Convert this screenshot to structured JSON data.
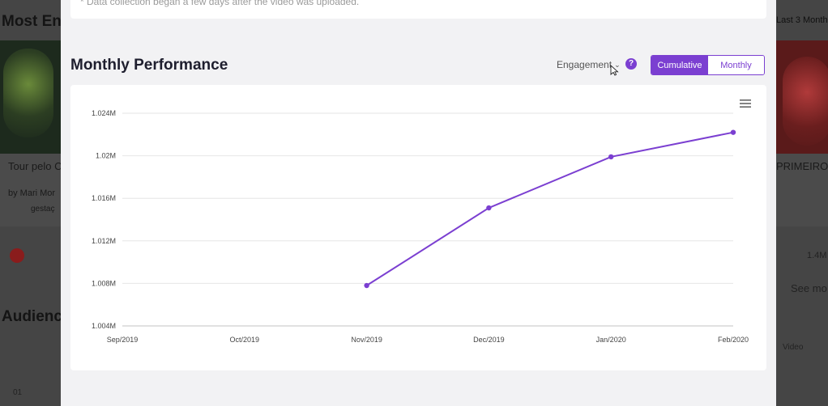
{
  "background": {
    "section_title": "Most En",
    "left_card_title": "Tour pelo C",
    "left_card_author": "by Mari Mor",
    "left_card_tags": "gestaç",
    "audience_title": "Audienc",
    "right_header": "Last 3 Month",
    "right_card_title": "PRIMEIRO",
    "right_views": "1.4M",
    "see_more": "See mo",
    "per_video": "Video",
    "bottom_left": "01"
  },
  "modal": {
    "note": "* Data collection began a few days after the video was uploaded.",
    "title": "Monthly Performance",
    "metric_dropdown": "Engagement",
    "help_label": "?",
    "toggle": {
      "cumulative": "Cumulative",
      "monthly": "Monthly",
      "active": "cumulative"
    },
    "accent_color": "#7b3fd1"
  },
  "chart_data": {
    "type": "line",
    "x": [
      "Sep/2019",
      "Oct/2019",
      "Nov/2019",
      "Dec/2019",
      "Jan/2020",
      "Feb/2020"
    ],
    "yticks": [
      "1.004M",
      "1.008M",
      "1.012M",
      "1.016M",
      "1.02M",
      "1.024M"
    ],
    "ylim": [
      1004000,
      1024000
    ],
    "series": [
      {
        "values": [
          null,
          null,
          1007800,
          1015100,
          1019900,
          1022200
        ]
      }
    ],
    "grid": true,
    "legend": "none",
    "color": "#7b3fd1"
  }
}
